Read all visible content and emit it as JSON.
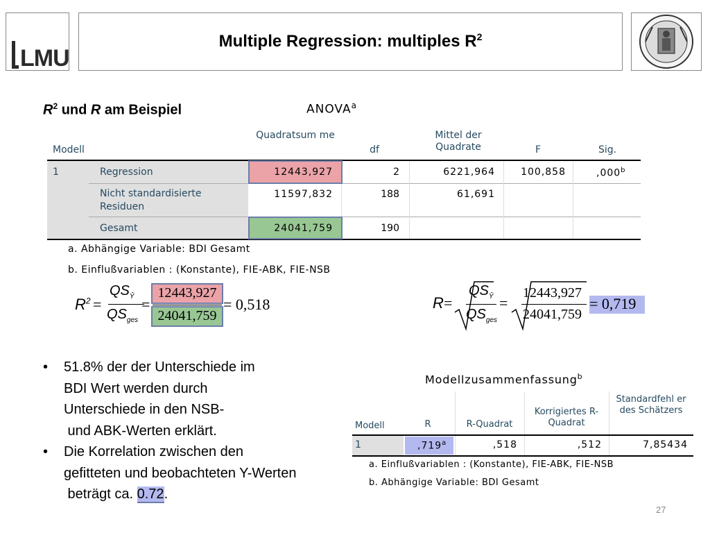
{
  "header": {
    "logo_text": "LMU",
    "title": "Multiple Regression: multiples R",
    "title_sup": "2",
    "seal": "university-seal"
  },
  "section": {
    "heading_r": "R",
    "heading_sup": "2",
    "heading_mid": " und ",
    "heading_r2": "R",
    "heading_rest": " am Beispiel"
  },
  "anova": {
    "title": "ANOVA",
    "title_sup": "a",
    "headers": [
      "Modell",
      "Quadratsum me",
      "df",
      "Mittel der Quadrate",
      "F",
      "Sig."
    ],
    "model": "1",
    "rows": [
      {
        "label": "Regression",
        "qs": "12443,927",
        "df": "2",
        "mq": "6221,964",
        "f": "100,858",
        "sig": ",000",
        "sig_sup": "b"
      },
      {
        "label": "Nicht standardisierte Residuen",
        "qs": "11597,832",
        "df": "188",
        "mq": "61,691",
        "f": "",
        "sig": "",
        "sig_sup": ""
      },
      {
        "label": "Gesamt",
        "qs": "24041,759",
        "df": "190",
        "mq": "",
        "f": "",
        "sig": "",
        "sig_sup": ""
      }
    ],
    "footnotes": [
      "a. Abhängige Variable: BDI Gesamt",
      "b. Einflußvariablen : (Konstante), FIE-ABK, FIE-NSB"
    ]
  },
  "formula_r2": {
    "lhs": "R",
    "lhs_sup": "2",
    "eq": "=",
    "num": "QS",
    "num_sub": "Ŷ",
    "den": "QS",
    "den_sub": "ges",
    "num_val": "12443,927",
    "den_val": "24041,759",
    "result": "= 0,518"
  },
  "formula_r": {
    "lhs": "R",
    "eq": "=",
    "num": "QS",
    "num_sub": "Ŷ",
    "den": "QS",
    "den_sub": "ges",
    "num_val": "12443,927",
    "den_val": "24041,759",
    "result": "= 0,719"
  },
  "bullets": {
    "b1_lines": [
      "51.8% der der Unterschiede im",
      "BDI Wert werden durch",
      "Unterschiede in den NSB-",
      " und ABK-Werten erklärt."
    ],
    "b2_lines": [
      "Die Korrelation zwischen den",
      "gefitteten und beobachteten Y-Werten"
    ],
    "b2_last_pre": " beträgt ca. ",
    "b2_last_val": "0.72",
    "b2_last_post": "."
  },
  "modell": {
    "title": "Modellzusammenfassung",
    "title_sup": "b",
    "headers": [
      "Modell",
      "R",
      "R-Quadrat",
      "Korrigiertes R-Quadrat",
      "Standardfehl er des Schätzers"
    ],
    "row": {
      "model": "1",
      "r": ",719",
      "r_sup": "a",
      "r2": ",518",
      "r2_adj": ",512",
      "se": "7,85434"
    },
    "footnotes": [
      "a. Einflußvariablen : (Konstante), FIE-ABK, FIE-NSB",
      "b. Abhängige Variable: BDI Gesamt"
    ]
  },
  "page_number": "27",
  "colors": {
    "highlight_red": "#eba3a8",
    "highlight_green": "#99c794",
    "highlight_blue": "#b3b9ef",
    "spss_header": "#264a60"
  }
}
